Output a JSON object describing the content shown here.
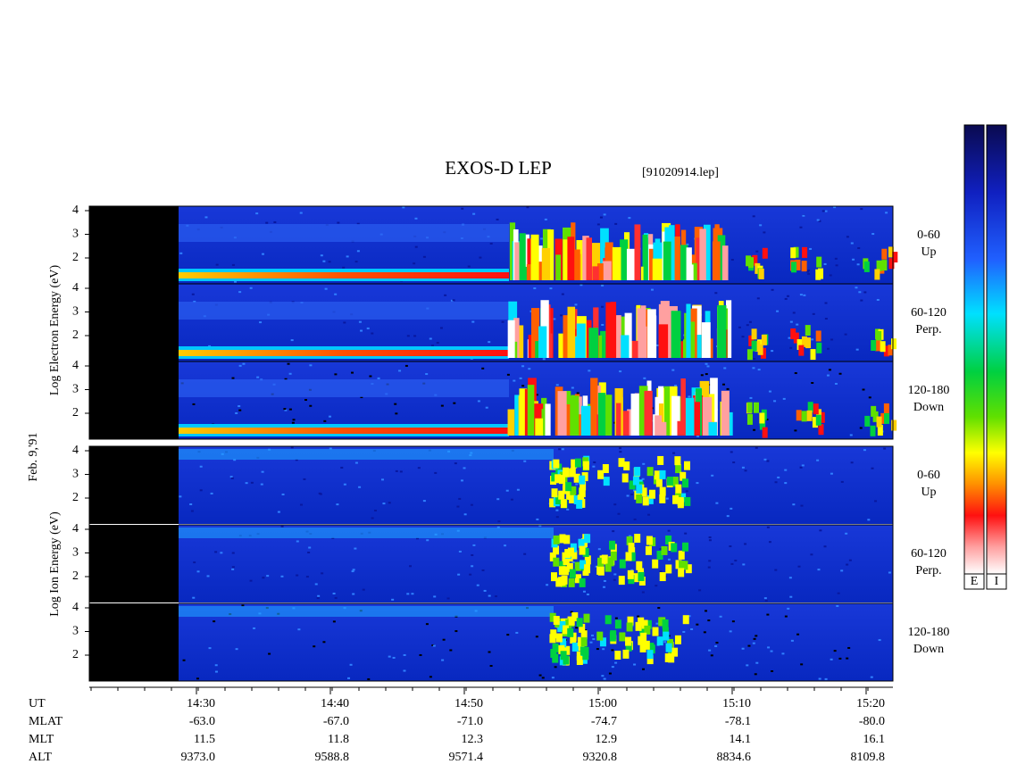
{
  "title": "EXOS-D LEP",
  "file": "[91020914.lep]",
  "date_label": "Feb. 9,'91",
  "electron": {
    "axis_label": "Log  Electron  Energy (eV)",
    "panels": [
      {
        "label": "0-60",
        "sub": "Up",
        "yticks": [
          4,
          3,
          2
        ]
      },
      {
        "label": "60-120",
        "sub": "Perp.",
        "yticks": [
          4,
          3,
          2
        ]
      },
      {
        "label": "120-180",
        "sub": "Down",
        "yticks": [
          4,
          3,
          2
        ]
      }
    ]
  },
  "ion": {
    "axis_label": "Log  Ion  Energy (eV)",
    "panels": [
      {
        "label": "0-60",
        "sub": "Up",
        "yticks": [
          4,
          3,
          2
        ]
      },
      {
        "label": "60-120",
        "sub": "Perp.",
        "yticks": [
          4,
          3,
          2
        ]
      },
      {
        "label": "120-180",
        "sub": "Down",
        "yticks": [
          4,
          3,
          2
        ]
      }
    ]
  },
  "colorbars": [
    "E",
    "I"
  ],
  "ephemeris": {
    "rows": [
      {
        "name": "UT",
        "values": [
          "14:30",
          "14:40",
          "14:50",
          "15:00",
          "15:10",
          "15:20"
        ]
      },
      {
        "name": "MLAT",
        "values": [
          "-63.0",
          "-67.0",
          "-71.0",
          "-74.7",
          "-78.1",
          "-80.0"
        ]
      },
      {
        "name": "MLT",
        "values": [
          "11.5",
          "11.8",
          "12.3",
          "12.9",
          "14.1",
          "16.1"
        ]
      },
      {
        "name": "ALT",
        "values": [
          "9373.0",
          "9588.8",
          "9571.4",
          "9320.8",
          "8834.6",
          "8109.8"
        ]
      }
    ]
  }
}
